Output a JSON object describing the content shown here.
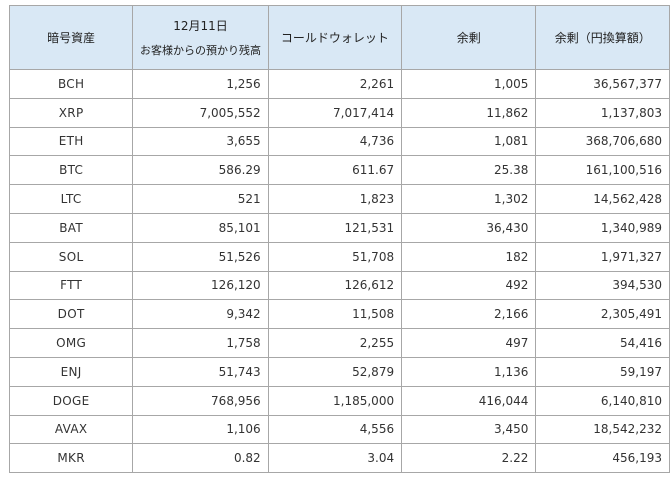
{
  "table": {
    "headers": {
      "asset": "暗号資産",
      "customer_date": "12月11日",
      "customer_label": "お客様からの預かり残高",
      "cold_wallet": "コールドウォレット",
      "surplus": "余剰",
      "surplus_jpy": "余剰（円換算額）"
    },
    "rows": [
      {
        "asset": "BCH",
        "customer": "1,256",
        "cold": "2,261",
        "surplus": "1,005",
        "jpy": "36,567,377"
      },
      {
        "asset": "XRP",
        "customer": "7,005,552",
        "cold": "7,017,414",
        "surplus": "11,862",
        "jpy": "1,137,803"
      },
      {
        "asset": "ETH",
        "customer": "3,655",
        "cold": "4,736",
        "surplus": "1,081",
        "jpy": "368,706,680"
      },
      {
        "asset": "BTC",
        "customer": "586.29",
        "cold": "611.67",
        "surplus": "25.38",
        "jpy": "161,100,516"
      },
      {
        "asset": "LTC",
        "customer": "521",
        "cold": "1,823",
        "surplus": "1,302",
        "jpy": "14,562,428"
      },
      {
        "asset": "BAT",
        "customer": "85,101",
        "cold": "121,531",
        "surplus": "36,430",
        "jpy": "1,340,989"
      },
      {
        "asset": "SOL",
        "customer": "51,526",
        "cold": "51,708",
        "surplus": "182",
        "jpy": "1,971,327"
      },
      {
        "asset": "FTT",
        "customer": "126,120",
        "cold": "126,612",
        "surplus": "492",
        "jpy": "394,530"
      },
      {
        "asset": "DOT",
        "customer": "9,342",
        "cold": "11,508",
        "surplus": "2,166",
        "jpy": "2,305,491"
      },
      {
        "asset": "OMG",
        "customer": "1,758",
        "cold": "2,255",
        "surplus": "497",
        "jpy": "54,416"
      },
      {
        "asset": "ENJ",
        "customer": "51,743",
        "cold": "52,879",
        "surplus": "1,136",
        "jpy": "59,197"
      },
      {
        "asset": "DOGE",
        "customer": "768,956",
        "cold": "1,185,000",
        "surplus": "416,044",
        "jpy": "6,140,810"
      },
      {
        "asset": "AVAX",
        "customer": "1,106",
        "cold": "4,556",
        "surplus": "3,450",
        "jpy": "18,542,232"
      },
      {
        "asset": "MKR",
        "customer": "0.82",
        "cold": "3.04",
        "surplus": "2.22",
        "jpy": "456,193"
      }
    ]
  },
  "colors": {
    "header_bg": "#d9e8f5",
    "border": "#a7a7a7",
    "text": "#333333"
  }
}
